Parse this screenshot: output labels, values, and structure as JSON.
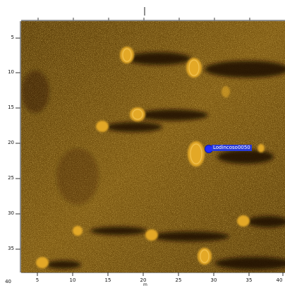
{
  "y_axis": {
    "ticks": [
      "5",
      "10",
      "15",
      "20",
      "25",
      "30",
      "35",
      "40"
    ]
  },
  "x_axis": {
    "ticks": [
      "5",
      "10",
      "15",
      "20",
      "25",
      "30",
      "35",
      "40"
    ],
    "label": "m"
  },
  "top_axis": {
    "ticks": [
      "",
      "",
      "",
      "",
      "",
      "",
      "",
      ""
    ]
  },
  "marker": {
    "label": "Lodincoso0050",
    "color": "#1f2cff"
  },
  "colors": {
    "seabed": "#6b4a0c",
    "highlight": "#e0a623",
    "shadow": "#1a1004",
    "frame": "#000000"
  }
}
